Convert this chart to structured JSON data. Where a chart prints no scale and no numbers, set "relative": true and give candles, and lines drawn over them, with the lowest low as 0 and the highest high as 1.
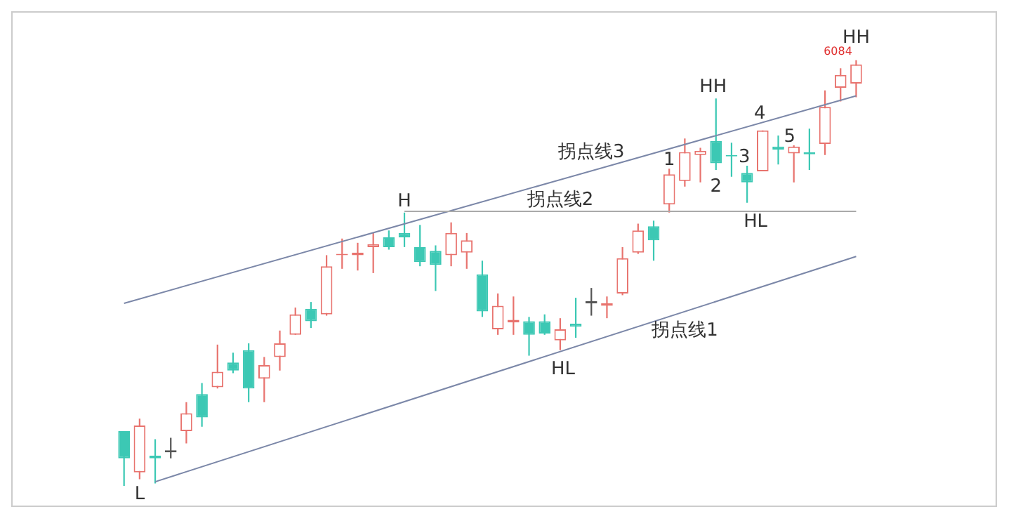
{
  "chart_data": {
    "type": "candlestick",
    "relative": true,
    "categories": [
      null,
      null,
      null,
      null,
      null,
      null,
      null,
      null,
      null,
      null,
      null,
      null,
      null,
      null,
      null,
      null,
      null,
      null,
      null,
      null,
      null,
      null,
      null,
      null,
      null,
      null,
      null,
      null,
      null,
      null,
      null,
      null,
      null,
      null,
      null,
      null,
      null,
      null,
      null,
      null,
      null,
      null,
      null,
      null,
      null,
      null,
      null,
      null
    ],
    "ohlc": [
      [
        0.129,
        0.129,
        0,
        0.065
      ],
      [
        0.032,
        0.158,
        0.016,
        0.142
      ],
      [
        0.071,
        0.11,
        0.006,
        0.065
      ],
      [
        0.084,
        0.113,
        0.065,
        0.079
      ],
      [
        0.129,
        0.197,
        0.1,
        0.171
      ],
      [
        0.216,
        0.242,
        0.139,
        0.161
      ],
      [
        0.232,
        0.332,
        0.229,
        0.268
      ],
      [
        0.29,
        0.313,
        0.265,
        0.271
      ],
      [
        0.319,
        0.335,
        0.197,
        0.229
      ],
      [
        0.252,
        0.303,
        0.197,
        0.284
      ],
      [
        0.303,
        0.365,
        0.271,
        0.335
      ],
      [
        0.355,
        0.419,
        0.355,
        0.403
      ],
      [
        0.416,
        0.432,
        0.371,
        0.387
      ],
      [
        0.403,
        0.542,
        0.4,
        0.516
      ],
      [
        0.542,
        0.581,
        0.51,
        0.545
      ],
      [
        0.542,
        0.571,
        0.506,
        0.548
      ],
      [
        0.561,
        0.594,
        0.5,
        0.568
      ],
      [
        0.584,
        0.6,
        0.555,
        0.561
      ],
      [
        0.594,
        0.642,
        0.561,
        0.584
      ],
      [
        0.561,
        0.613,
        0.516,
        0.526
      ],
      [
        0.552,
        0.565,
        0.458,
        0.519
      ],
      [
        0.542,
        0.619,
        0.516,
        0.594
      ],
      [
        0.548,
        0.594,
        0.51,
        0.577
      ],
      [
        0.497,
        0.529,
        0.397,
        0.41
      ],
      [
        0.368,
        0.452,
        0.355,
        0.423
      ],
      [
        0.384,
        0.445,
        0.355,
        0.39
      ],
      [
        0.387,
        0.397,
        0.306,
        0.355
      ],
      [
        0.387,
        0.403,
        0.355,
        0.358
      ],
      [
        0.342,
        0.394,
        0.319,
        0.368
      ],
      [
        0.381,
        0.442,
        0.348,
        0.374
      ],
      [
        0.434,
        0.465,
        0.4,
        0.429
      ],
      [
        0.423,
        0.445,
        0.394,
        0.429
      ],
      [
        0.452,
        0.561,
        0.448,
        0.535
      ],
      [
        0.548,
        0.616,
        0.545,
        0.6
      ],
      [
        0.61,
        0.623,
        0.529,
        0.577
      ],
      [
        0.661,
        0.745,
        0.642,
        0.732
      ],
      [
        0.716,
        0.816,
        0.703,
        0.784
      ],
      [
        0.777,
        0.794,
        0.713,
        0.787
      ],
      [
        0.81,
        0.91,
        0.742,
        0.758
      ],
      [
        0.777,
        0.806,
        0.726,
        0.774
      ],
      [
        0.735,
        0.752,
        0.665,
        0.713
      ],
      [
        0.739,
        0.835,
        0.739,
        0.835
      ],
      [
        0.797,
        0.823,
        0.755,
        0.79
      ],
      [
        0.781,
        0.8,
        0.713,
        0.797
      ],
      [
        0.784,
        0.839,
        0.742,
        0.779
      ],
      [
        0.803,
        0.929,
        0.777,
        0.89
      ],
      [
        0.935,
        0.981,
        0.903,
        0.965
      ],
      [
        0.945,
        1,
        0.913,
        0.99
      ]
    ],
    "colors": [
      "#3cc8b4",
      "#e8736e",
      "#3cc8b4",
      "#555555",
      "#e8736e",
      "#3cc8b4",
      "#e8736e",
      "#3cc8b4",
      "#3cc8b4",
      "#e8736e",
      "#e8736e",
      "#e8736e",
      "#3cc8b4",
      "#e8736e",
      "#e8736e",
      "#e8736e",
      "#e8736e",
      "#3cc8b4",
      "#3cc8b4",
      "#3cc8b4",
      "#3cc8b4",
      "#e8736e",
      "#e8736e",
      "#3cc8b4",
      "#e8736e",
      "#e8736e",
      "#3cc8b4",
      "#3cc8b4",
      "#e8736e",
      "#3cc8b4",
      "#555555",
      "#e8736e",
      "#e8736e",
      "#e8736e",
      "#3cc8b4",
      "#e8736e",
      "#e8736e",
      "#e8736e",
      "#3cc8b4",
      "#3cc8b4",
      "#3cc8b4",
      "#e8736e",
      "#3cc8b4",
      "#e8736e",
      "#3cc8b4",
      "#e8736e",
      "#e8736e",
      "#e8736e"
    ],
    "series": [
      {
        "name": "拐点线1",
        "type": "line",
        "color": "#7b87a8",
        "values": [
          null,
          null,
          0.01,
          null,
          null,
          null,
          null,
          null,
          null,
          null,
          null,
          null,
          null,
          null,
          null,
          null,
          null,
          null,
          null,
          null,
          null,
          null,
          null,
          null,
          null,
          null,
          null,
          null,
          null,
          null,
          null,
          null,
          null,
          null,
          null,
          null,
          null,
          null,
          null,
          null,
          null,
          null,
          null,
          null,
          null,
          null,
          null,
          0.539
        ]
      },
      {
        "name": "拐点线2",
        "type": "line",
        "color": "#aaaaaa",
        "values": [
          null,
          null,
          null,
          null,
          null,
          null,
          null,
          null,
          null,
          null,
          null,
          null,
          null,
          null,
          null,
          null,
          null,
          null,
          0.645,
          null,
          null,
          null,
          null,
          null,
          null,
          null,
          null,
          null,
          null,
          null,
          null,
          null,
          null,
          null,
          null,
          null,
          null,
          null,
          null,
          null,
          null,
          null,
          null,
          null,
          null,
          null,
          null,
          0.645
        ]
      },
      {
        "name": "拐点线3",
        "type": "line",
        "color": "#7b87a8",
        "values": [
          0.429,
          null,
          null,
          null,
          null,
          null,
          null,
          null,
          null,
          null,
          null,
          null,
          null,
          null,
          null,
          null,
          null,
          null,
          null,
          null,
          null,
          null,
          null,
          null,
          null,
          null,
          null,
          null,
          null,
          null,
          null,
          null,
          null,
          null,
          null,
          null,
          null,
          null,
          null,
          null,
          null,
          null,
          null,
          null,
          null,
          null,
          null,
          0.916
        ]
      }
    ],
    "annotations": [
      "L",
      "H",
      "HL",
      "HL",
      "HH",
      "HH",
      "1",
      "2",
      "3",
      "4",
      "5",
      "6084"
    ]
  }
}
